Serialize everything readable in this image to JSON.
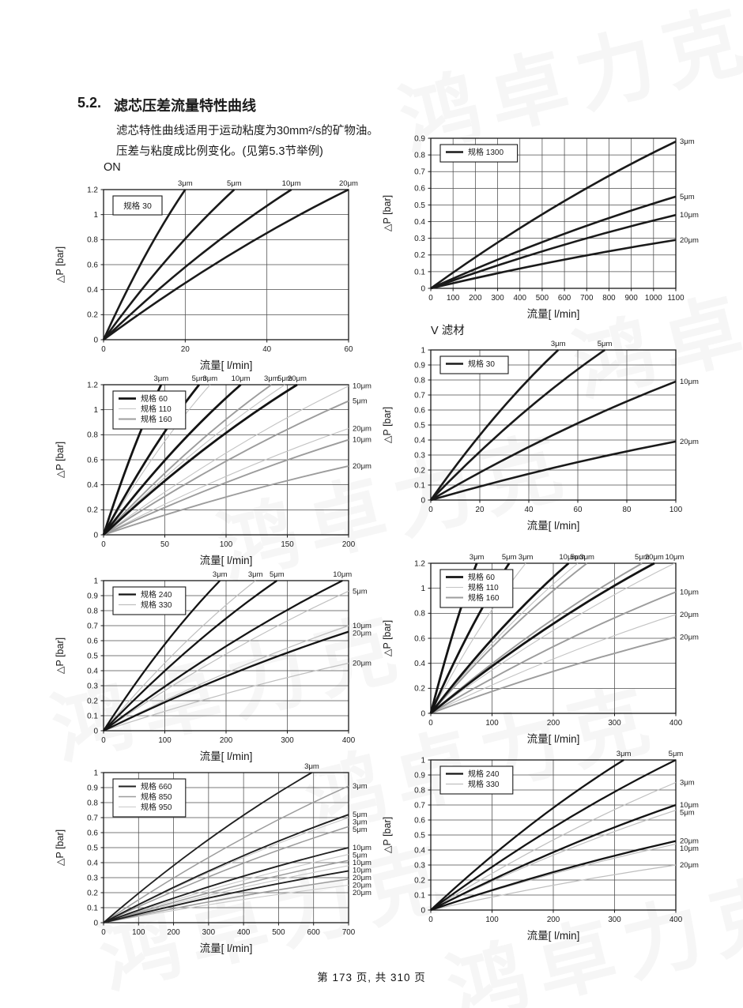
{
  "page": {
    "section": "5.2.",
    "title": "滤芯压差流量特性曲线",
    "subtitle1": "滤芯特性曲线适用于运动粘度为30mm²/s的矿物油。",
    "subtitle2": "压差与粘度成比例变化。(见第5.3节举例)",
    "footer": "第 173 页, 共 310 页",
    "watermark_text": "鸿卓力克"
  },
  "chart_data": [
    {
      "type": "line",
      "name": "ON 规格 30",
      "pre_title": "ON",
      "xlabel": "流量[ l/min]",
      "ylabel": "△P [bar]",
      "xlim": [
        0,
        60
      ],
      "ylim": [
        0,
        1.2
      ],
      "xticks": [
        0,
        20,
        40,
        60
      ],
      "yticks": [
        0,
        0.2,
        0.4,
        0.6,
        0.8,
        1,
        1.2
      ],
      "grid": true,
      "legend_position": "top-left",
      "legend": {
        "show_swatch": false,
        "entries": [
          {
            "label": "规格 30",
            "color": "#1a1a1a",
            "width": 2.6
          }
        ]
      },
      "series": [
        {
          "spec": "规格 30",
          "micron": "3μm",
          "from": [
            0,
            0
          ],
          "exit": "top",
          "exit_at": 20
        },
        {
          "spec": "规格 30",
          "micron": "5μm",
          "from": [
            0,
            0
          ],
          "exit": "top",
          "exit_at": 32
        },
        {
          "spec": "规格 30",
          "micron": "10μm",
          "from": [
            0,
            0
          ],
          "exit": "top",
          "exit_at": 46
        },
        {
          "spec": "规格 30",
          "micron": "20μm",
          "from": [
            0,
            0
          ],
          "exit": "top",
          "exit_at": 60
        }
      ]
    },
    {
      "type": "line",
      "name": "规格 1300",
      "pre_title": null,
      "xlabel": "流量[ l/min]",
      "ylabel": "△P [bar]",
      "xlim": [
        0,
        1100
      ],
      "ylim": [
        0,
        0.9
      ],
      "xticks": [
        0,
        100,
        200,
        300,
        400,
        500,
        600,
        700,
        800,
        900,
        1000,
        1100
      ],
      "yticks": [
        0,
        0.1,
        0.2,
        0.3,
        0.4,
        0.5,
        0.6,
        0.7,
        0.8,
        0.9
      ],
      "grid": true,
      "legend_position": "top-left",
      "legend": {
        "show_swatch": true,
        "entries": [
          {
            "label": "规格 1300",
            "color": "#1a1a1a",
            "width": 2.6
          }
        ]
      },
      "series": [
        {
          "spec": "规格 1300",
          "micron": "3μm",
          "from": [
            0,
            0
          ],
          "exit": "right",
          "exit_at": 0.88
        },
        {
          "spec": "规格 1300",
          "micron": "5μm",
          "from": [
            0,
            0
          ],
          "exit": "right",
          "exit_at": 0.55
        },
        {
          "spec": "规格 1300",
          "micron": "10μm",
          "from": [
            0,
            0
          ],
          "exit": "right",
          "exit_at": 0.44
        },
        {
          "spec": "规格 1300",
          "micron": "20μm",
          "from": [
            0,
            0
          ],
          "exit": "right",
          "exit_at": 0.29
        }
      ]
    },
    {
      "type": "line",
      "name": "规格 60/110/160 (0-200)",
      "pre_title": null,
      "xlabel": "流量[ l/min]",
      "ylabel": "△P [bar]",
      "xlim": [
        0,
        200
      ],
      "ylim": [
        0,
        1.2
      ],
      "xticks": [
        0,
        50,
        100,
        150,
        200
      ],
      "yticks": [
        0,
        0.2,
        0.4,
        0.6,
        0.8,
        1,
        1.2
      ],
      "grid": true,
      "legend_position": "top-left",
      "legend": {
        "show_swatch": true,
        "entries": [
          {
            "label": "规格 60",
            "color": "#141414",
            "width": 2.8
          },
          {
            "label": "规格 110",
            "color": "#c3c3c3",
            "width": 1.1
          },
          {
            "label": "规格 160",
            "color": "#9c9c9c",
            "width": 1.9
          }
        ]
      },
      "series": [
        {
          "spec": "规格 110",
          "micron": "3μm",
          "from": [
            0,
            0
          ],
          "exit": "top",
          "exit_at": 87
        },
        {
          "spec": "规格 110",
          "micron": "5μm",
          "from": [
            0,
            0
          ],
          "exit": "top",
          "exit_at": 148
        },
        {
          "spec": "规格 110",
          "micron": "10μm",
          "from": [
            0,
            0
          ],
          "exit": "right",
          "exit_at": 1.19
        },
        {
          "spec": "规格 110",
          "micron": "20μm",
          "from": [
            0,
            0
          ],
          "exit": "right",
          "exit_at": 0.85
        },
        {
          "spec": "规格 160",
          "micron": "3μm",
          "from": [
            0,
            0
          ],
          "exit": "top",
          "exit_at": 137
        },
        {
          "spec": "规格 160",
          "micron": "5μm",
          "from": [
            0,
            0
          ],
          "exit": "right",
          "exit_at": 1.07
        },
        {
          "spec": "规格 160",
          "micron": "10μm",
          "from": [
            0,
            0
          ],
          "exit": "right",
          "exit_at": 0.76
        },
        {
          "spec": "规格 160",
          "micron": "20μm",
          "from": [
            0,
            0
          ],
          "exit": "right",
          "exit_at": 0.55
        },
        {
          "spec": "规格 60",
          "micron": "3μm",
          "from": [
            0,
            0
          ],
          "exit": "top",
          "exit_at": 47
        },
        {
          "spec": "规格 60",
          "micron": "5μm",
          "from": [
            0,
            0
          ],
          "exit": "top",
          "exit_at": 78
        },
        {
          "spec": "规格 60",
          "micron": "10μm",
          "from": [
            0,
            0
          ],
          "exit": "top",
          "exit_at": 112
        },
        {
          "spec": "规格 60",
          "micron": "20μm",
          "from": [
            0,
            0
          ],
          "exit": "top",
          "exit_at": 158
        }
      ]
    },
    {
      "type": "line",
      "name": "V 滤材 规格 30",
      "pre_title": "V 滤材",
      "xlabel": "流量[ l/min]",
      "ylabel": "△P [bar]",
      "xlim": [
        0,
        100
      ],
      "ylim": [
        0,
        1
      ],
      "xticks": [
        0,
        20,
        40,
        60,
        80,
        100
      ],
      "yticks": [
        0,
        0.1,
        0.2,
        0.3,
        0.4,
        0.5,
        0.6,
        0.7,
        0.8,
        0.9,
        1
      ],
      "grid": true,
      "legend_position": "top-left",
      "legend": {
        "show_swatch": true,
        "entries": [
          {
            "label": "规格 30",
            "color": "#1a1a1a",
            "width": 2.6
          }
        ]
      },
      "series": [
        {
          "spec": "规格 30",
          "micron": "3μm",
          "from": [
            0,
            0
          ],
          "exit": "top",
          "exit_at": 52
        },
        {
          "spec": "规格 30",
          "micron": "5μm",
          "from": [
            0,
            0
          ],
          "exit": "top",
          "exit_at": 71
        },
        {
          "spec": "规格 30",
          "micron": "10μm",
          "from": [
            0,
            0
          ],
          "exit": "right",
          "exit_at": 0.79
        },
        {
          "spec": "规格 30",
          "micron": "20μm",
          "from": [
            0,
            0
          ],
          "exit": "right",
          "exit_at": 0.39
        }
      ]
    },
    {
      "type": "line",
      "name": "规格 240/330 (row3)",
      "pre_title": null,
      "xlabel": "流量[ l/min]",
      "ylabel": "△P [bar]",
      "xlim": [
        0,
        400
      ],
      "ylim": [
        0,
        1
      ],
      "xticks": [
        0,
        100,
        200,
        300,
        400
      ],
      "yticks": [
        0,
        0.1,
        0.2,
        0.3,
        0.4,
        0.5,
        0.6,
        0.7,
        0.8,
        0.9,
        1
      ],
      "grid": true,
      "legend_position": "top-left",
      "legend": {
        "show_swatch": true,
        "entries": [
          {
            "label": "规格 240",
            "color": "#141414",
            "width": 2.3
          },
          {
            "label": "规格 330",
            "color": "#bfbfbf",
            "width": 1.2
          }
        ]
      },
      "series": [
        {
          "spec": "规格 330",
          "micron": "3μm",
          "from": [
            0,
            0
          ],
          "exit": "top",
          "exit_at": 248
        },
        {
          "spec": "规格 330",
          "micron": "5μm",
          "from": [
            0,
            0
          ],
          "exit": "right",
          "exit_at": 0.93
        },
        {
          "spec": "规格 330",
          "micron": "10μm",
          "from": [
            0,
            0
          ],
          "exit": "right",
          "exit_at": 0.7
        },
        {
          "spec": "规格 330",
          "micron": "20μm",
          "from": [
            0,
            0
          ],
          "exit": "right",
          "exit_at": 0.45
        },
        {
          "spec": "规格 240",
          "micron": "3μm",
          "from": [
            0,
            0
          ],
          "exit": "top",
          "exit_at": 190
        },
        {
          "spec": "规格 240",
          "micron": "5μm",
          "from": [
            0,
            0
          ],
          "exit": "top",
          "exit_at": 283
        },
        {
          "spec": "规格 240",
          "micron": "10μm",
          "from": [
            0,
            0
          ],
          "exit": "top",
          "exit_at": 390
        },
        {
          "spec": "规格 240",
          "micron": "20μm",
          "from": [
            0,
            0
          ],
          "exit": "right",
          "exit_at": 0.66
        }
      ]
    },
    {
      "type": "line",
      "name": "规格 60/110/160 (0-400)",
      "pre_title": null,
      "xlabel": "流量[ l/min]",
      "ylabel": "△P [bar]",
      "xlim": [
        0,
        400
      ],
      "ylim": [
        0,
        1.2
      ],
      "xticks": [
        0,
        100,
        200,
        300,
        400
      ],
      "yticks": [
        0,
        0.2,
        0.4,
        0.6,
        0.8,
        1,
        1.2
      ],
      "grid": true,
      "legend_position": "top-left",
      "legend": {
        "show_swatch": true,
        "entries": [
          {
            "label": "规格 60",
            "color": "#141414",
            "width": 2.8
          },
          {
            "label": "规格 110",
            "color": "#c3c3c3",
            "width": 1.1
          },
          {
            "label": "规格 160",
            "color": "#9c9c9c",
            "width": 1.9
          }
        ]
      },
      "series": [
        {
          "spec": "规格 110",
          "micron": "3μm",
          "from": [
            0,
            0
          ],
          "exit": "top",
          "exit_at": 155
        },
        {
          "spec": "规格 110",
          "micron": "5μm",
          "from": [
            0,
            0
          ],
          "exit": "top",
          "exit_at": 240
        },
        {
          "spec": "规格 110",
          "micron": "10μm",
          "from": [
            0,
            0
          ],
          "exit": "top",
          "exit_at": 398
        },
        {
          "spec": "规格 110",
          "micron": "20μm",
          "from": [
            0,
            0
          ],
          "exit": "right",
          "exit_at": 0.79
        },
        {
          "spec": "规格 160",
          "micron": "3μm",
          "from": [
            0,
            0
          ],
          "exit": "top",
          "exit_at": 255
        },
        {
          "spec": "规格 160",
          "micron": "5μm",
          "from": [
            0,
            0
          ],
          "exit": "top",
          "exit_at": 345
        },
        {
          "spec": "规格 160",
          "micron": "10μm",
          "from": [
            0,
            0
          ],
          "exit": "right",
          "exit_at": 0.97
        },
        {
          "spec": "规格 160",
          "micron": "20μm",
          "from": [
            0,
            0
          ],
          "exit": "right",
          "exit_at": 0.61
        },
        {
          "spec": "规格 60",
          "micron": "3μm",
          "from": [
            0,
            0
          ],
          "exit": "top",
          "exit_at": 75
        },
        {
          "spec": "规格 60",
          "micron": "5μm",
          "from": [
            0,
            0
          ],
          "exit": "top",
          "exit_at": 128
        },
        {
          "spec": "规格 60",
          "micron": "10μm",
          "from": [
            0,
            0
          ],
          "exit": "top",
          "exit_at": 225
        },
        {
          "spec": "规格 60",
          "micron": "20μm",
          "from": [
            0,
            0
          ],
          "exit": "top",
          "exit_at": 365
        }
      ]
    },
    {
      "type": "line",
      "name": "规格 660/850/950",
      "pre_title": null,
      "xlabel": "流量[ l/min]",
      "ylabel": "△P [bar]",
      "xlim": [
        0,
        700
      ],
      "ylim": [
        0,
        1
      ],
      "xticks": [
        0,
        100,
        200,
        300,
        400,
        500,
        600,
        700
      ],
      "yticks": [
        0,
        0.1,
        0.2,
        0.3,
        0.4,
        0.5,
        0.6,
        0.7,
        0.8,
        0.9,
        1
      ],
      "grid": true,
      "legend_position": "top-left",
      "legend": {
        "show_swatch": true,
        "entries": [
          {
            "label": "规格 660",
            "color": "#202020",
            "width": 1.9
          },
          {
            "label": "规格 850",
            "color": "#9c9c9c",
            "width": 1.5
          },
          {
            "label": "规格 950",
            "color": "#c9c9c9",
            "width": 1.1
          }
        ]
      },
      "series": [
        {
          "spec": "规格 950",
          "micron": "3μm",
          "from": [
            0,
            0
          ],
          "exit": "right",
          "exit_at": 0.7
        },
        {
          "spec": "规格 950",
          "micron": "5μm",
          "from": [
            0,
            0
          ],
          "exit": "right",
          "exit_at": 0.455
        },
        {
          "spec": "规格 950",
          "micron": "10μm",
          "from": [
            0,
            0
          ],
          "exit": "right",
          "exit_at": 0.38
        },
        {
          "spec": "规格 950",
          "micron": "20μm",
          "from": [
            0,
            0
          ],
          "exit": "right",
          "exit_at": 0.25
        },
        {
          "spec": "规格 850",
          "micron": "3μm",
          "from": [
            0,
            0
          ],
          "exit": "right",
          "exit_at": 0.91
        },
        {
          "spec": "规格 850",
          "micron": "5μm",
          "from": [
            0,
            0
          ],
          "exit": "right",
          "exit_at": 0.64
        },
        {
          "spec": "规格 850",
          "micron": "10μm",
          "from": [
            0,
            0
          ],
          "exit": "right",
          "exit_at": 0.415
        },
        {
          "spec": "规格 850",
          "micron": "20μm",
          "from": [
            0,
            0
          ],
          "exit": "right",
          "exit_at": 0.29
        },
        {
          "spec": "规格 660",
          "micron": "3μm",
          "from": [
            0,
            0
          ],
          "exit": "top",
          "exit_at": 595
        },
        {
          "spec": "规格 660",
          "micron": "5μm",
          "from": [
            0,
            0
          ],
          "exit": "right",
          "exit_at": 0.72
        },
        {
          "spec": "规格 660",
          "micron": "10μm",
          "from": [
            0,
            0
          ],
          "exit": "right",
          "exit_at": 0.5
        },
        {
          "spec": "规格 660",
          "micron": "20μm",
          "from": [
            0,
            0
          ],
          "exit": "right",
          "exit_at": 0.345
        }
      ]
    },
    {
      "type": "line",
      "name": "规格 240/330 (row4)",
      "pre_title": null,
      "xlabel": "流量[ l/min]",
      "ylabel": "△P [bar]",
      "xlim": [
        0,
        400
      ],
      "ylim": [
        0,
        1
      ],
      "xticks": [
        0,
        100,
        200,
        300,
        400
      ],
      "yticks": [
        0,
        0.1,
        0.2,
        0.3,
        0.4,
        0.5,
        0.6,
        0.7,
        0.8,
        0.9,
        1
      ],
      "grid": true,
      "legend_position": "top-left",
      "legend": {
        "show_swatch": true,
        "entries": [
          {
            "label": "规格 240",
            "color": "#141414",
            "width": 2.3
          },
          {
            "label": "规格 330",
            "color": "#bfbfbf",
            "width": 1.2
          }
        ]
      },
      "series": [
        {
          "spec": "规格 330",
          "micron": "3μm",
          "from": [
            0,
            0
          ],
          "exit": "right",
          "exit_at": 0.85
        },
        {
          "spec": "规格 330",
          "micron": "5μm",
          "from": [
            0,
            0
          ],
          "exit": "right",
          "exit_at": 0.665
        },
        {
          "spec": "规格 330",
          "micron": "10μm",
          "from": [
            0,
            0
          ],
          "exit": "right",
          "exit_at": 0.44
        },
        {
          "spec": "规格 330",
          "micron": "20μm",
          "from": [
            0,
            0
          ],
          "exit": "right",
          "exit_at": 0.3
        },
        {
          "spec": "规格 240",
          "micron": "3μm",
          "from": [
            0,
            0
          ],
          "exit": "top",
          "exit_at": 315
        },
        {
          "spec": "规格 240",
          "micron": "5μm",
          "from": [
            0,
            0
          ],
          "exit": "top",
          "exit_at": 400
        },
        {
          "spec": "规格 240",
          "micron": "10μm",
          "from": [
            0,
            0
          ],
          "exit": "right",
          "exit_at": 0.7
        },
        {
          "spec": "规格 240",
          "micron": "20μm",
          "from": [
            0,
            0
          ],
          "exit": "right",
          "exit_at": 0.46
        }
      ]
    }
  ]
}
